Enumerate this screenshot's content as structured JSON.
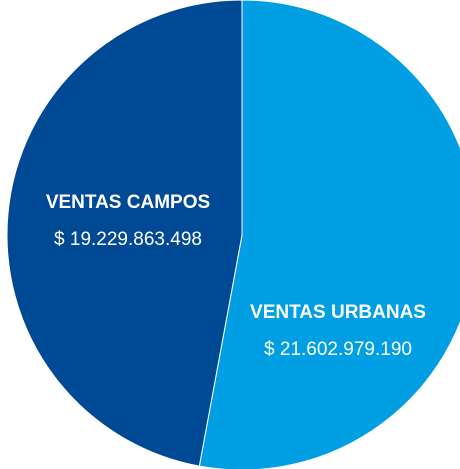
{
  "chart_data": {
    "type": "pie",
    "categories": [
      "VENTAS URBANAS",
      "VENTAS CAMPOS"
    ],
    "values": [
      21602979190,
      19229863498
    ],
    "value_labels": [
      "$ 21.602.979.190",
      "$ 19.229.863.498"
    ],
    "colors": [
      "#009fe3",
      "#004994"
    ]
  }
}
